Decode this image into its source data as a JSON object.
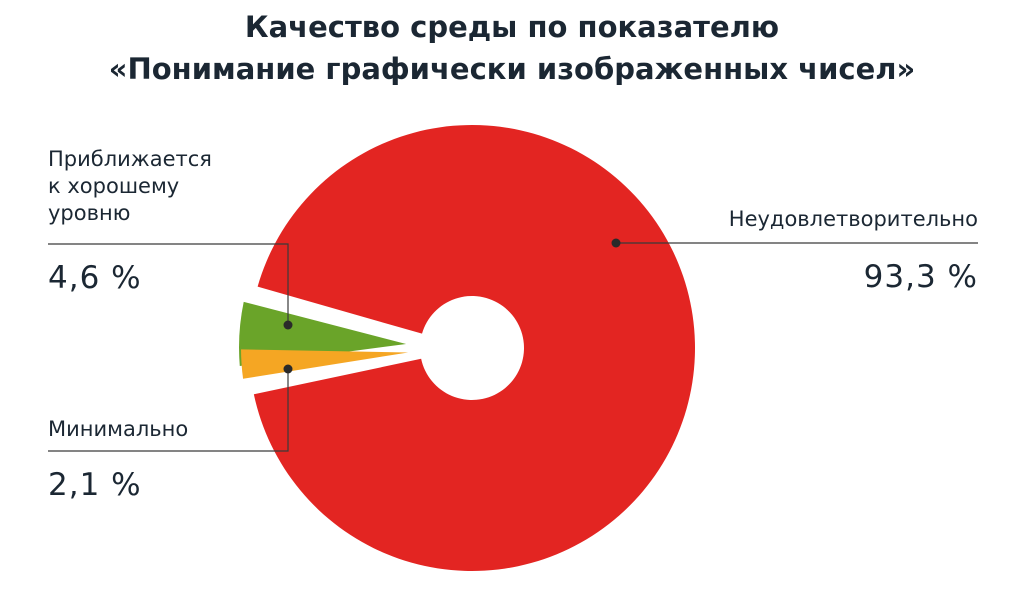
{
  "title_lines": [
    "Качество среды по показателю",
    "«Понимание графически изображенных чисел»"
  ],
  "chart_data": {
    "type": "pie",
    "title": "Качество среды по показателю «Понимание графически изображенных чисел»",
    "slices": [
      {
        "label": "Неудовлетворительно",
        "value": 93.3,
        "display": "93,3 %",
        "color": "#e32522"
      },
      {
        "label": "Приближается к хорошему уровню",
        "value": 4.6,
        "display": "4,6 %",
        "color": "#6aa429"
      },
      {
        "label": "Минимально",
        "value": 2.1,
        "display": "2,1 %",
        "color": "#f5a623"
      }
    ],
    "label_lines": {
      "Неудовлетворительно": [
        "Неудовлетворительно"
      ],
      "Приближается к хорошему уровню": [
        "Приближается",
        "к хорошему",
        "уровню"
      ],
      "Минимально": [
        "Минимально"
      ]
    },
    "donut": true,
    "exploded_small_slices": true,
    "legend": "none"
  }
}
